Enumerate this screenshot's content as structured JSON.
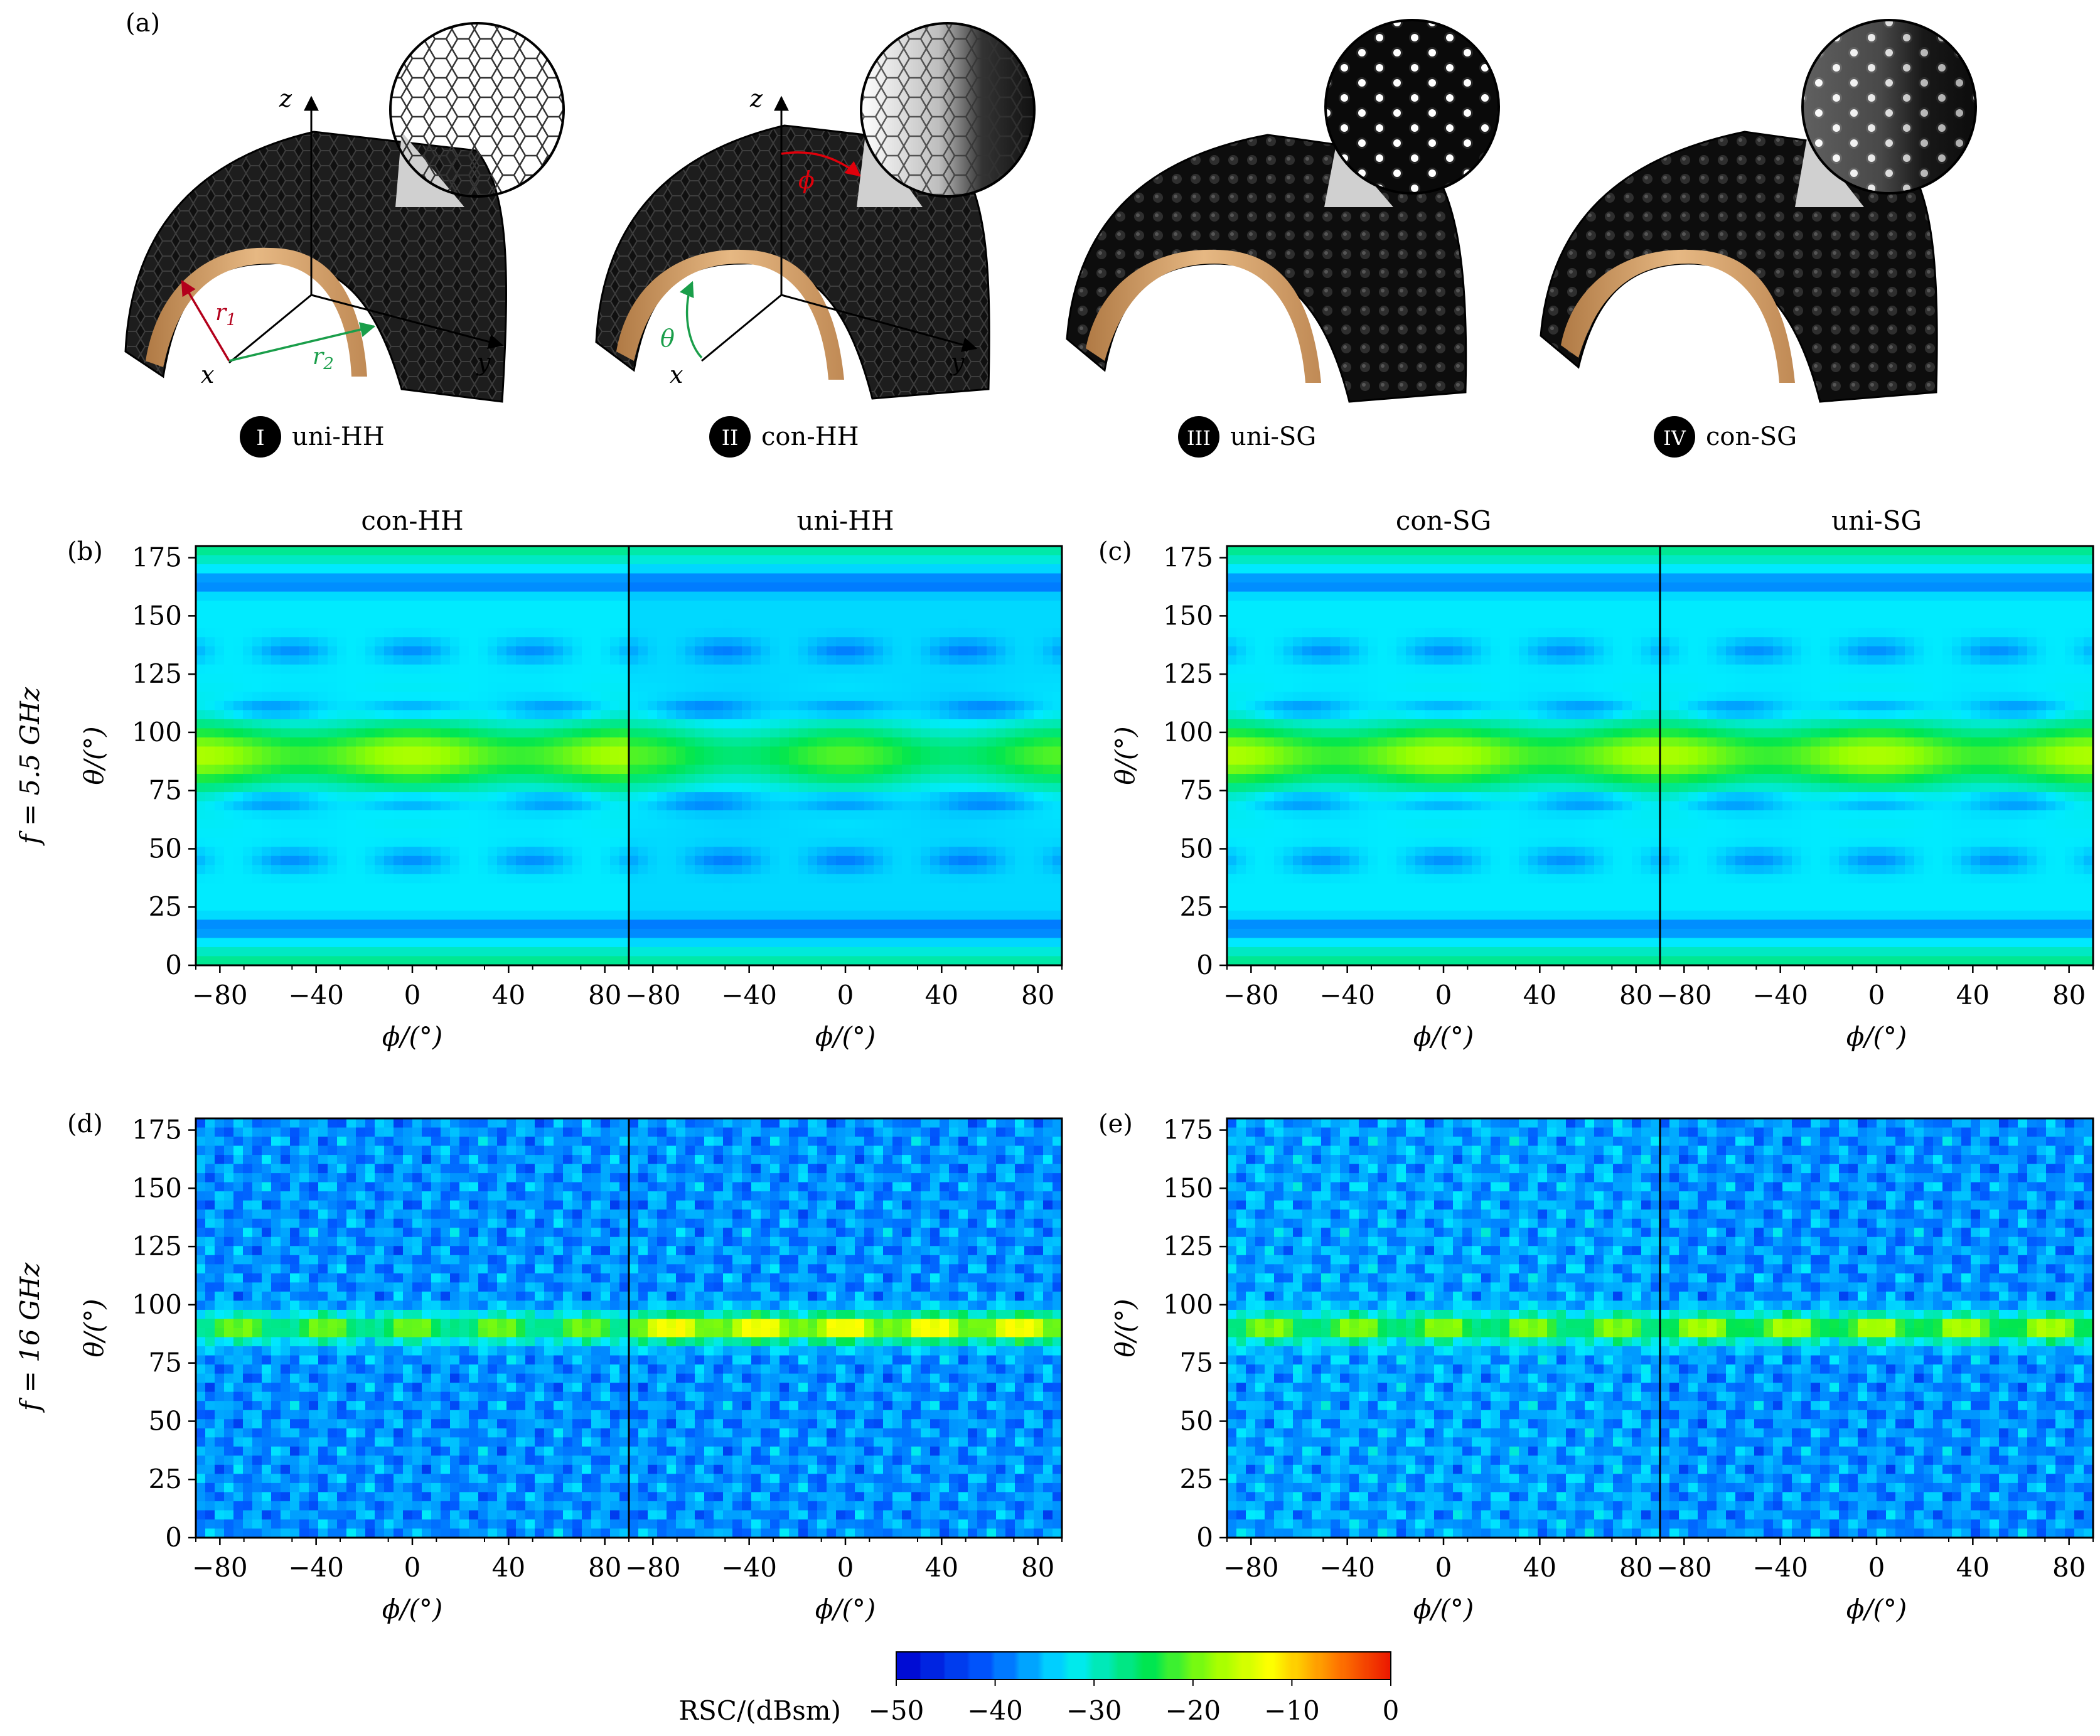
{
  "panel_a": {
    "label": "(a)",
    "axis_labels": {
      "x": "x",
      "y": "y",
      "z": "z",
      "r1": "r",
      "r1_sub": "1",
      "r2": "r",
      "r2_sub": "2",
      "theta": "θ",
      "phi": "ϕ"
    },
    "structures": [
      {
        "roman": "I",
        "name": "uni-HH",
        "icon": "honeycomb-uniform-icon"
      },
      {
        "roman": "II",
        "name": "con-HH",
        "icon": "honeycomb-graded-icon"
      },
      {
        "roman": "III",
        "name": "uni-SG",
        "icon": "gyroid-uniform-icon"
      },
      {
        "roman": "IV",
        "name": "con-SG",
        "icon": "gyroid-graded-icon"
      }
    ],
    "colors": {
      "lattice": "#141414",
      "shell": "#d7a46c",
      "r1_arrow": "#b3001b",
      "r2_arrow": "#1a9e4a",
      "phi_arrow": "#e0000b"
    }
  },
  "row_labels": [
    {
      "text": "f = 5.5 GHz"
    },
    {
      "text": "f = 16 GHz"
    }
  ],
  "panel_letters": [
    "(b)",
    "(c)",
    "(d)",
    "(e)"
  ],
  "subplot_titles": [
    "con-HH",
    "uni-HH",
    "con-SG",
    "uni-SG"
  ],
  "x_axis_label": "ϕ/(°)",
  "y_axis_label": "θ/(°)",
  "x_ticks": [
    "−80",
    "−40",
    "0",
    "40",
    "80"
  ],
  "x_tick_values": [
    -80,
    -40,
    0,
    40,
    80
  ],
  "y_ticks": [
    "0",
    "25",
    "50",
    "75",
    "100",
    "125",
    "150",
    "175"
  ],
  "y_tick_values": [
    0,
    25,
    50,
    75,
    100,
    125,
    150,
    175
  ],
  "colorbar": {
    "label": "RSC/(dBsm)",
    "ticks": [
      "−50",
      "−40",
      "−30",
      "−20",
      "−10",
      "0"
    ],
    "range": [
      -50,
      0
    ]
  },
  "chart_data": [
    {
      "panel": "(b)",
      "type": "heatmap",
      "title": "con-HH",
      "frequency": "5.5 GHz",
      "xlabel": "ϕ/(°)",
      "ylabel": "θ/(°)",
      "xlim": [
        -90,
        90
      ],
      "ylim": [
        0,
        180
      ],
      "zlim": [
        -50,
        0
      ],
      "band_center_theta": 90,
      "band_peak_dBsm": -20,
      "background_dBsm": -33
    },
    {
      "panel": "(b)",
      "type": "heatmap",
      "title": "uni-HH",
      "frequency": "5.5 GHz",
      "xlabel": "ϕ/(°)",
      "ylabel": "θ/(°)",
      "xlim": [
        -90,
        90
      ],
      "ylim": [
        0,
        180
      ],
      "zlim": [
        -50,
        0
      ],
      "band_center_theta": 90,
      "band_peak_dBsm": -24,
      "background_dBsm": -34
    },
    {
      "panel": "(c)",
      "type": "heatmap",
      "title": "con-SG",
      "frequency": "5.5 GHz",
      "xlabel": "ϕ/(°)",
      "ylabel": "θ/(°)",
      "xlim": [
        -90,
        90
      ],
      "ylim": [
        0,
        180
      ],
      "zlim": [
        -50,
        0
      ],
      "band_center_theta": 90,
      "band_peak_dBsm": -20,
      "background_dBsm": -33
    },
    {
      "panel": "(c)",
      "type": "heatmap",
      "title": "uni-SG",
      "frequency": "5.5 GHz",
      "xlabel": "ϕ/(°)",
      "ylabel": "θ/(°)",
      "xlim": [
        -90,
        90
      ],
      "ylim": [
        0,
        180
      ],
      "zlim": [
        -50,
        0
      ],
      "band_center_theta": 90,
      "band_peak_dBsm": -20,
      "background_dBsm": -33
    },
    {
      "panel": "(d)",
      "type": "heatmap",
      "title": "con-HH",
      "frequency": "16 GHz",
      "xlabel": "ϕ/(°)",
      "ylabel": "θ/(°)",
      "xlim": [
        -90,
        90
      ],
      "ylim": [
        0,
        180
      ],
      "zlim": [
        -50,
        0
      ],
      "band_center_theta": 90,
      "band_peak_dBsm": -23,
      "background_dBsm": -38
    },
    {
      "panel": "(d)",
      "type": "heatmap",
      "title": "uni-HH",
      "frequency": "16 GHz",
      "xlabel": "ϕ/(°)",
      "ylabel": "θ/(°)",
      "xlim": [
        -90,
        90
      ],
      "ylim": [
        0,
        180
      ],
      "zlim": [
        -50,
        0
      ],
      "band_center_theta": 90,
      "band_peak_dBsm": -15,
      "background_dBsm": -38
    },
    {
      "panel": "(e)",
      "type": "heatmap",
      "title": "con-SG",
      "frequency": "16 GHz",
      "xlabel": "ϕ/(°)",
      "ylabel": "θ/(°)",
      "xlim": [
        -90,
        90
      ],
      "ylim": [
        0,
        180
      ],
      "zlim": [
        -50,
        0
      ],
      "band_center_theta": 90,
      "band_peak_dBsm": -22,
      "background_dBsm": -37
    },
    {
      "panel": "(e)",
      "type": "heatmap",
      "title": "uni-SG",
      "frequency": "16 GHz",
      "xlabel": "ϕ/(°)",
      "ylabel": "θ/(°)",
      "xlim": [
        -90,
        90
      ],
      "ylim": [
        0,
        180
      ],
      "zlim": [
        -50,
        0
      ],
      "band_center_theta": 90,
      "band_peak_dBsm": -20,
      "background_dBsm": -38
    }
  ]
}
